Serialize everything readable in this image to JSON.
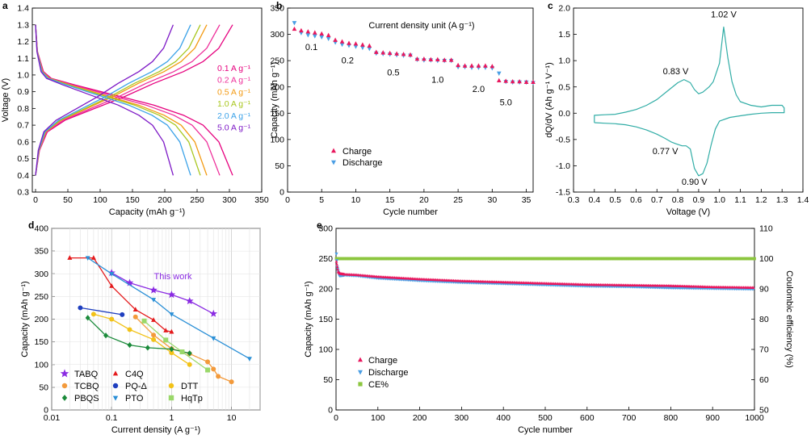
{
  "colors": {
    "c1": "#e6007e",
    "c2": "#ee2f9a",
    "c3": "#f39a12",
    "c4": "#a9c720",
    "c5": "#3ba2e8",
    "c6": "#7d19c6",
    "charge": "#e8175d",
    "discharge": "#4a9ee4",
    "cv": "#31ada6",
    "ce": "#8cc63f",
    "gray": "#bdbdbd",
    "tabq": "#8a2be2",
    "c4q": "#e41a1c",
    "tcbq": "#f39a3b",
    "pqd": "#1f3fbf",
    "pbqs": "#1a8a3a",
    "pto": "#2a8fd6",
    "dtt": "#f2c218",
    "hqtp": "#9ad86a"
  },
  "chart_data": [
    {
      "id": "a",
      "type": "line",
      "panel_label": "a",
      "xlabel": "Capacity (mAh g⁻¹)",
      "ylabel": "Voltage (V)",
      "xlim": [
        -5,
        350
      ],
      "ylim": [
        0.3,
        1.4
      ],
      "xticks": [
        "0",
        "50",
        "100",
        "150",
        "200",
        "250",
        "300",
        "350"
      ],
      "yticks": [
        "0.3",
        "0.4",
        "0.5",
        "0.6",
        "0.7",
        "0.8",
        "0.9",
        "1.0",
        "1.1",
        "1.2",
        "1.3",
        "1.4"
      ],
      "legend": [
        "0.1 A g⁻¹",
        "0.2 A g⁻¹",
        "0.5 A g⁻¹",
        "1.0 A g⁻¹",
        "2.0 A g⁻¹",
        "5.0 A g⁻¹"
      ],
      "series": [
        {
          "name": "0.1 A g⁻¹",
          "color": "c1",
          "cap": 305
        },
        {
          "name": "0.2 A g⁻¹",
          "color": "c2",
          "cap": 285
        },
        {
          "name": "0.5 A g⁻¹",
          "color": "c3",
          "cap": 265
        },
        {
          "name": "1.0 A g⁻¹",
          "color": "c4",
          "cap": 255
        },
        {
          "name": "2.0 A g⁻¹",
          "color": "c5",
          "cap": 240
        },
        {
          "name": "5.0 A g⁻¹",
          "color": "c6",
          "cap": 213
        }
      ],
      "discharge_shape": [
        [
          0,
          1.3
        ],
        [
          0.01,
          1.14
        ],
        [
          0.04,
          1.02
        ],
        [
          0.08,
          0.98
        ],
        [
          0.2,
          0.94
        ],
        [
          0.4,
          0.88
        ],
        [
          0.6,
          0.82
        ],
        [
          0.75,
          0.76
        ],
        [
          0.85,
          0.7
        ],
        [
          0.93,
          0.6
        ],
        [
          1,
          0.4
        ]
      ],
      "charge_shape": [
        [
          0,
          0.4
        ],
        [
          0.02,
          0.55
        ],
        [
          0.06,
          0.66
        ],
        [
          0.15,
          0.73
        ],
        [
          0.3,
          0.8
        ],
        [
          0.45,
          0.87
        ],
        [
          0.6,
          0.95
        ],
        [
          0.75,
          1.02
        ],
        [
          0.85,
          1.08
        ],
        [
          0.93,
          1.16
        ],
        [
          1,
          1.3
        ]
      ]
    },
    {
      "id": "b",
      "type": "scatter",
      "panel_label": "b",
      "title": "Current density unit (A g⁻¹)",
      "xlabel": "Cycle number",
      "ylabel": "Capacity (mAh g⁻¹)",
      "xlim": [
        0,
        36
      ],
      "ylim": [
        0,
        350
      ],
      "xticks": [
        "0",
        "5",
        "10",
        "15",
        "20",
        "25",
        "30",
        "35"
      ],
      "yticks": [
        "0",
        "50",
        "100",
        "150",
        "200",
        "250",
        "300",
        "350"
      ],
      "legend": [
        "Charge",
        "Discharge"
      ],
      "annotations": [
        {
          "text": "0.1",
          "x": 3.5,
          "y": 270
        },
        {
          "text": "0.2",
          "x": 8.8,
          "y": 245
        },
        {
          "text": "0.5",
          "x": 15.5,
          "y": 222
        },
        {
          "text": "1.0",
          "x": 22,
          "y": 208
        },
        {
          "text": "2.0",
          "x": 28,
          "y": 190
        },
        {
          "text": "5.0",
          "x": 32,
          "y": 165
        }
      ],
      "charge": [
        [
          1,
          310
        ],
        [
          2,
          307
        ],
        [
          3,
          305
        ],
        [
          4,
          303
        ],
        [
          5,
          301
        ],
        [
          6,
          298
        ],
        [
          7,
          289
        ],
        [
          8,
          286
        ],
        [
          9,
          283
        ],
        [
          10,
          282
        ],
        [
          11,
          280
        ],
        [
          12,
          278
        ],
        [
          13,
          266
        ],
        [
          14,
          265
        ],
        [
          15,
          264
        ],
        [
          16,
          263
        ],
        [
          17,
          262
        ],
        [
          18,
          261
        ],
        [
          19,
          253
        ],
        [
          20,
          253
        ],
        [
          21,
          252
        ],
        [
          22,
          252
        ],
        [
          23,
          251
        ],
        [
          24,
          251
        ],
        [
          25,
          241
        ],
        [
          26,
          240
        ],
        [
          27,
          240
        ],
        [
          28,
          240
        ],
        [
          29,
          240
        ],
        [
          30,
          239
        ],
        [
          31,
          212
        ],
        [
          32,
          211
        ],
        [
          33,
          210
        ],
        [
          34,
          210
        ],
        [
          35,
          209
        ],
        [
          36,
          209
        ]
      ],
      "discharge": [
        [
          1,
          322
        ],
        [
          2,
          303
        ],
        [
          3,
          299
        ],
        [
          4,
          297
        ],
        [
          5,
          295
        ],
        [
          6,
          292
        ],
        [
          7,
          285
        ],
        [
          8,
          281
        ],
        [
          9,
          279
        ],
        [
          10,
          277
        ],
        [
          11,
          275
        ],
        [
          12,
          273
        ],
        [
          13,
          264
        ],
        [
          14,
          263
        ],
        [
          15,
          262
        ],
        [
          16,
          261
        ],
        [
          17,
          260
        ],
        [
          18,
          260
        ],
        [
          19,
          252
        ],
        [
          20,
          251
        ],
        [
          21,
          251
        ],
        [
          22,
          250
        ],
        [
          23,
          250
        ],
        [
          24,
          250
        ],
        [
          25,
          238
        ],
        [
          26,
          238
        ],
        [
          27,
          237
        ],
        [
          28,
          237
        ],
        [
          29,
          237
        ],
        [
          30,
          236
        ],
        [
          31,
          226
        ],
        [
          32,
          210
        ],
        [
          33,
          209
        ],
        [
          34,
          209
        ],
        [
          35,
          209
        ],
        [
          36,
          208
        ]
      ]
    },
    {
      "id": "c",
      "type": "line",
      "panel_label": "c",
      "xlabel": "Voltage (V)",
      "ylabel": "dQ/dV (Ah g⁻¹ V⁻¹)",
      "xlim": [
        0.3,
        1.4
      ],
      "ylim": [
        -1.5,
        2.0
      ],
      "xticks": [
        "0.3",
        "0.4",
        "0.5",
        "0.6",
        "0.7",
        "0.8",
        "0.9",
        "1.0",
        "1.1",
        "1.2",
        "1.3",
        "1.4"
      ],
      "yticks": [
        "-1.5",
        "-1.0",
        "-0.5",
        "0.0",
        "0.5",
        "1.0",
        "1.5",
        "2.0"
      ],
      "annotations": [
        {
          "text": "1.02 V",
          "x": 1.02,
          "y": 1.82
        },
        {
          "text": "0.83 V",
          "x": 0.79,
          "y": 0.74
        },
        {
          "text": "0.77 V",
          "x": 0.74,
          "y": -0.78
        },
        {
          "text": "0.90 V",
          "x": 0.88,
          "y": -1.36
        }
      ],
      "curve": [
        [
          0.4,
          -0.18
        ],
        [
          0.4,
          -0.04
        ],
        [
          0.45,
          -0.03
        ],
        [
          0.5,
          -0.02
        ],
        [
          0.55,
          0.02
        ],
        [
          0.6,
          0.07
        ],
        [
          0.65,
          0.15
        ],
        [
          0.7,
          0.26
        ],
        [
          0.75,
          0.42
        ],
        [
          0.8,
          0.58
        ],
        [
          0.83,
          0.64
        ],
        [
          0.86,
          0.58
        ],
        [
          0.88,
          0.45
        ],
        [
          0.9,
          0.37
        ],
        [
          0.92,
          0.4
        ],
        [
          0.95,
          0.5
        ],
        [
          0.97,
          0.6
        ],
        [
          1.0,
          0.95
        ],
        [
          1.02,
          1.64
        ],
        [
          1.04,
          1.05
        ],
        [
          1.06,
          0.6
        ],
        [
          1.08,
          0.35
        ],
        [
          1.1,
          0.22
        ],
        [
          1.15,
          0.15
        ],
        [
          1.2,
          0.12
        ],
        [
          1.25,
          0.15
        ],
        [
          1.3,
          0.15
        ],
        [
          1.31,
          0.1
        ],
        [
          1.31,
          0.01
        ],
        [
          1.25,
          0.01
        ],
        [
          1.2,
          0.0
        ],
        [
          1.15,
          -0.02
        ],
        [
          1.1,
          -0.05
        ],
        [
          1.05,
          -0.08
        ],
        [
          1.0,
          -0.15
        ],
        [
          0.98,
          -0.3
        ],
        [
          0.96,
          -0.6
        ],
        [
          0.94,
          -0.95
        ],
        [
          0.92,
          -1.15
        ],
        [
          0.9,
          -1.19
        ],
        [
          0.88,
          -1.05
        ],
        [
          0.86,
          -0.68
        ],
        [
          0.84,
          -0.62
        ],
        [
          0.82,
          -0.62
        ],
        [
          0.79,
          -0.58
        ],
        [
          0.77,
          -0.55
        ],
        [
          0.74,
          -0.48
        ],
        [
          0.7,
          -0.4
        ],
        [
          0.65,
          -0.32
        ],
        [
          0.6,
          -0.26
        ],
        [
          0.55,
          -0.22
        ],
        [
          0.5,
          -0.2
        ],
        [
          0.45,
          -0.19
        ],
        [
          0.4,
          -0.18
        ]
      ]
    },
    {
      "id": "d",
      "type": "line",
      "panel_label": "d",
      "xscale": "log",
      "annotation": "This work",
      "xlabel": "Current density (A g⁻¹)",
      "ylabel": "Capacity (mAh g⁻¹)",
      "xlim": [
        0.01,
        30
      ],
      "ylim": [
        0,
        400
      ],
      "xticks": [
        "0.01",
        "0.1",
        "1",
        "10"
      ],
      "yticks": [
        "0",
        "50",
        "100",
        "150",
        "200",
        "250",
        "300",
        "350",
        "400"
      ],
      "series": [
        {
          "name": "TABQ",
          "color": "tabq",
          "marker": "star",
          "points": [
            [
              0.1,
              302
            ],
            [
              0.2,
              280
            ],
            [
              0.5,
              264
            ],
            [
              1,
              254
            ],
            [
              2,
              240
            ],
            [
              5,
              212
            ]
          ]
        },
        {
          "name": "C4Q",
          "color": "c4q",
          "marker": "triangle",
          "points": [
            [
              0.02,
              335
            ],
            [
              0.05,
              335
            ],
            [
              0.1,
              273
            ],
            [
              0.25,
              221
            ],
            [
              0.5,
              198
            ],
            [
              0.8,
              175
            ],
            [
              1,
              172
            ]
          ]
        },
        {
          "name": "TCBQ",
          "color": "tcbq",
          "marker": "circle",
          "points": [
            [
              0.25,
              205
            ],
            [
              0.5,
              165
            ],
            [
              1,
              135
            ],
            [
              2,
              124
            ],
            [
              4,
              106
            ],
            [
              5,
              90
            ],
            [
              6,
              74
            ],
            [
              10,
              62
            ]
          ]
        },
        {
          "name": "PQ-Δ",
          "color": "pqd",
          "marker": "circle",
          "points": [
            [
              0.03,
              225
            ],
            [
              0.15,
              210
            ]
          ]
        },
        {
          "name": "DTT",
          "color": "dtt",
          "marker": "circle",
          "points": [
            [
              0.05,
              211
            ],
            [
              0.1,
              200
            ],
            [
              0.2,
              177
            ],
            [
              0.5,
              155
            ],
            [
              1,
              126
            ],
            [
              2,
              100
            ]
          ]
        },
        {
          "name": "PBQS",
          "color": "pbqs",
          "marker": "diamond",
          "points": [
            [
              0.04,
              203
            ],
            [
              0.08,
              164
            ],
            [
              0.2,
              143
            ],
            [
              0.4,
              137
            ],
            [
              1,
              134
            ],
            [
              2,
              125
            ]
          ]
        },
        {
          "name": "PTO",
          "color": "pto",
          "marker": "triangle-down",
          "points": [
            [
              0.04,
              335
            ],
            [
              0.1,
              300
            ],
            [
              0.5,
              243
            ],
            [
              1,
              211
            ],
            [
              5,
              158
            ],
            [
              20,
              113
            ]
          ]
        },
        {
          "name": "HqTp",
          "color": "hqtp",
          "marker": "square",
          "points": [
            [
              0.35,
              196
            ],
            [
              0.8,
              154
            ],
            [
              1.5,
              128
            ],
            [
              4,
              88
            ]
          ]
        }
      ]
    },
    {
      "id": "e",
      "type": "scatter",
      "panel_label": "e",
      "xlabel": "Cycle number",
      "ylabel": "Capacity (mAh g⁻¹)",
      "y2label": "Coulombic efficiency (%)",
      "xlim": [
        0,
        1000
      ],
      "ylim": [
        0,
        300
      ],
      "y2lim": [
        50,
        110
      ],
      "xticks": [
        "0",
        "100",
        "200",
        "300",
        "400",
        "500",
        "600",
        "700",
        "800",
        "900",
        "1000"
      ],
      "yticks": [
        "0",
        "50",
        "100",
        "150",
        "200",
        "250",
        "300"
      ],
      "y2ticks": [
        "50",
        "60",
        "70",
        "80",
        "90",
        "100",
        "110"
      ],
      "legend": [
        "Charge",
        "Discharge",
        "CE%"
      ],
      "charge_trend": [
        [
          1,
          245
        ],
        [
          5,
          228
        ],
        [
          10,
          225
        ],
        [
          20,
          224
        ],
        [
          50,
          223
        ],
        [
          100,
          220
        ],
        [
          200,
          216
        ],
        [
          300,
          213
        ],
        [
          400,
          211
        ],
        [
          500,
          209
        ],
        [
          600,
          207
        ],
        [
          700,
          206
        ],
        [
          800,
          205
        ],
        [
          900,
          203
        ],
        [
          1000,
          202
        ]
      ],
      "discharge_trend": [
        [
          1,
          258
        ],
        [
          3,
          236
        ],
        [
          8,
          222
        ],
        [
          20,
          223
        ],
        [
          50,
          222
        ],
        [
          100,
          218
        ],
        [
          200,
          214
        ],
        [
          300,
          211
        ],
        [
          400,
          209
        ],
        [
          500,
          207
        ],
        [
          600,
          205
        ],
        [
          700,
          204
        ],
        [
          800,
          202
        ],
        [
          900,
          201
        ],
        [
          1000,
          200
        ]
      ],
      "ce": 100
    }
  ]
}
